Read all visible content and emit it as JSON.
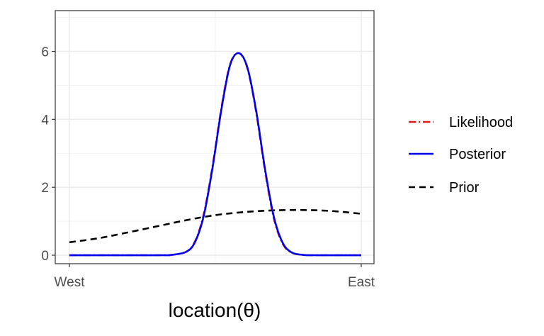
{
  "chart_data": {
    "type": "line",
    "title": "",
    "xlabel": "location(θ)",
    "ylabel": "",
    "xlim": [
      0,
      1
    ],
    "ylim": [
      -0.25,
      7.2
    ],
    "grid": true,
    "legend_position": "right",
    "x_ticks": [
      {
        "value": 0,
        "label": "West"
      },
      {
        "value": 1,
        "label": "East"
      }
    ],
    "y_ticks": [
      {
        "value": 0,
        "label": "0"
      },
      {
        "value": 2,
        "label": "2"
      },
      {
        "value": 4,
        "label": "4"
      },
      {
        "value": 6,
        "label": "6"
      }
    ],
    "series": [
      {
        "name": "Likelihood",
        "color": "#e41a1c",
        "dash": "dot-dash",
        "points": [
          [
            0,
            0
          ],
          [
            0.3,
            0
          ],
          [
            0.35,
            0.01
          ],
          [
            0.4,
            0.1
          ],
          [
            0.43,
            0.4
          ],
          [
            0.46,
            1.2
          ],
          [
            0.49,
            2.6
          ],
          [
            0.52,
            4.3
          ],
          [
            0.55,
            5.6
          ],
          [
            0.58,
            5.95
          ],
          [
            0.61,
            5.5
          ],
          [
            0.64,
            4.2
          ],
          [
            0.67,
            2.5
          ],
          [
            0.7,
            1.1
          ],
          [
            0.73,
            0.35
          ],
          [
            0.76,
            0.08
          ],
          [
            0.8,
            0.01
          ],
          [
            0.85,
            0
          ],
          [
            1,
            0
          ]
        ]
      },
      {
        "name": "Posterior",
        "color": "#0000ee",
        "dash": "solid",
        "points": [
          [
            0,
            0
          ],
          [
            0.3,
            0
          ],
          [
            0.35,
            0.01
          ],
          [
            0.4,
            0.1
          ],
          [
            0.43,
            0.38
          ],
          [
            0.46,
            1.15
          ],
          [
            0.49,
            2.55
          ],
          [
            0.52,
            4.25
          ],
          [
            0.55,
            5.58
          ],
          [
            0.58,
            5.95
          ],
          [
            0.61,
            5.52
          ],
          [
            0.64,
            4.25
          ],
          [
            0.67,
            2.55
          ],
          [
            0.7,
            1.15
          ],
          [
            0.73,
            0.38
          ],
          [
            0.76,
            0.09
          ],
          [
            0.8,
            0.01
          ],
          [
            0.85,
            0
          ],
          [
            1,
            0
          ]
        ]
      },
      {
        "name": "Prior",
        "color": "#000000",
        "dash": "dashed",
        "points": [
          [
            0,
            0.38
          ],
          [
            0.1,
            0.5
          ],
          [
            0.2,
            0.67
          ],
          [
            0.3,
            0.85
          ],
          [
            0.4,
            1.03
          ],
          [
            0.5,
            1.18
          ],
          [
            0.6,
            1.27
          ],
          [
            0.7,
            1.32
          ],
          [
            0.8,
            1.33
          ],
          [
            0.9,
            1.3
          ],
          [
            1,
            1.22
          ]
        ]
      }
    ]
  }
}
